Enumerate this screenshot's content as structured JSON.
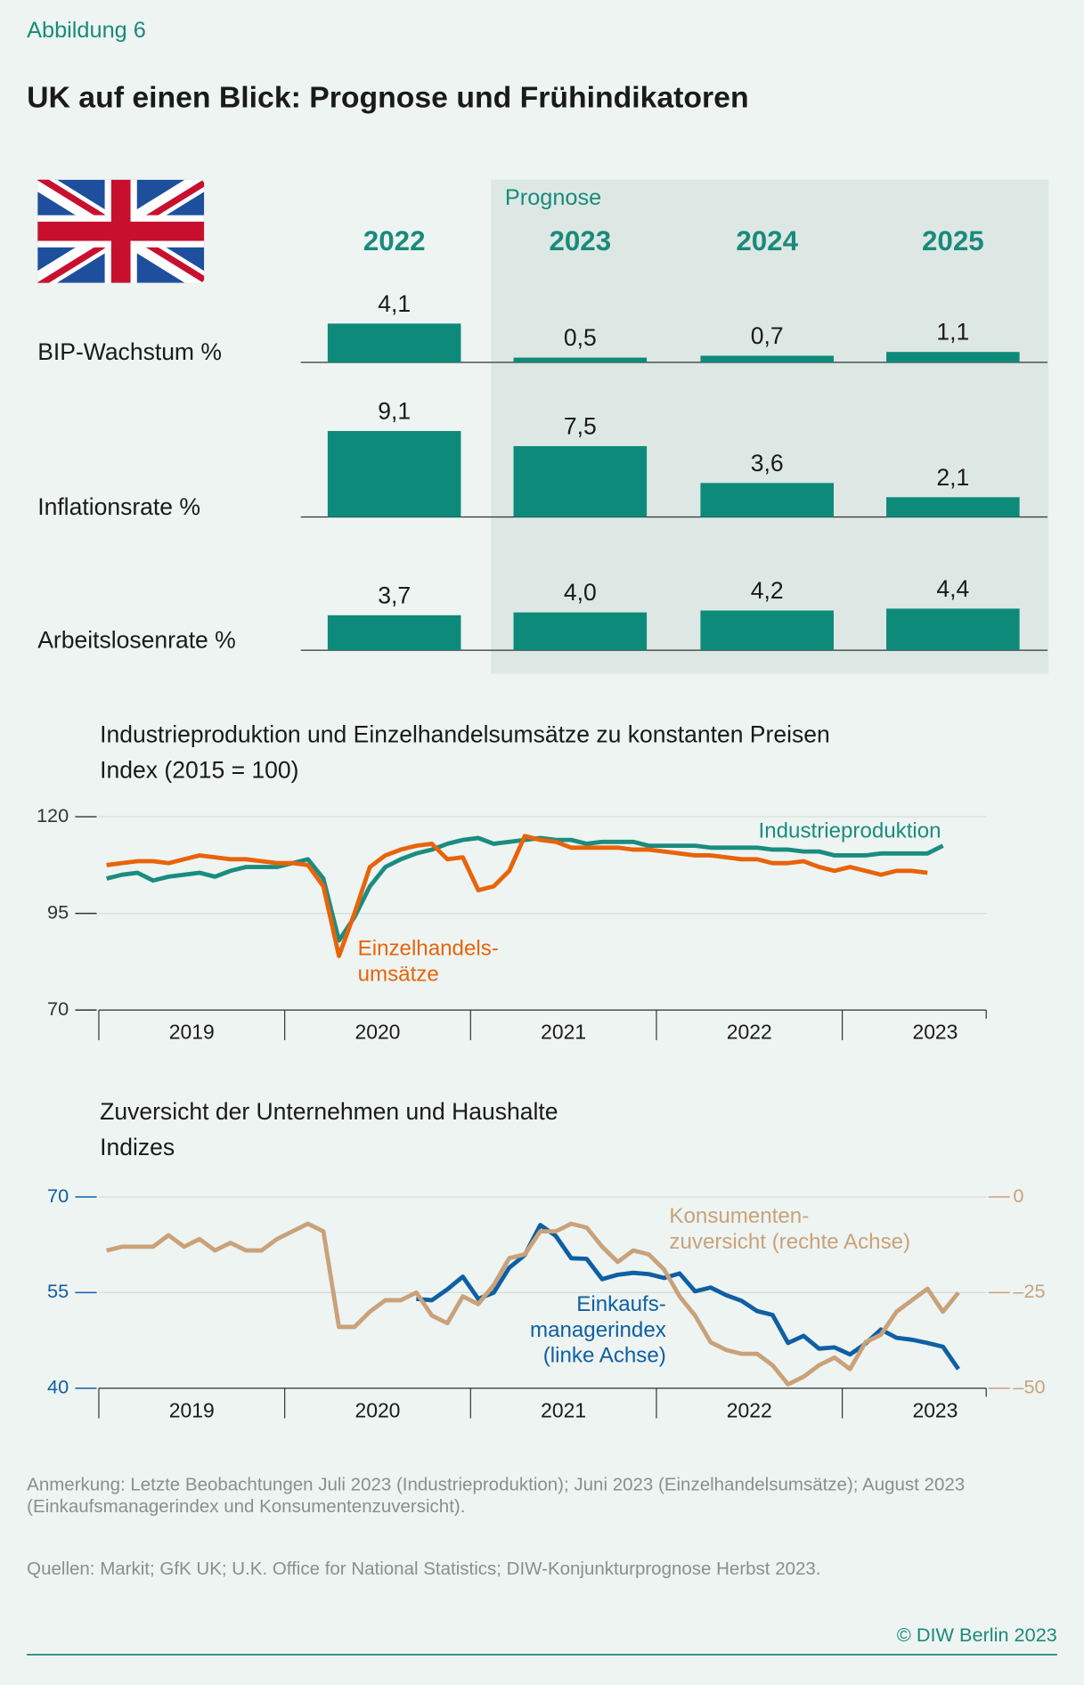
{
  "figure_label": "Abbildung 6",
  "title": "UK auf einen Blick: Prognose und Frühindikatoren",
  "note": "Anmerkung: Letzte Beobachtungen Juli 2023 (Industrieproduktion); Juni 2023 (Einzelhandelsumsätze); August 2023\n(Einkaufsmanagerindex und Konsumentenzuversicht).",
  "source": "Quellen: Markit; GfK UK; U.K. Office for National Statistics; DIW-Konjunkturprognose Herbst 2023.",
  "copyright": "© DIW Berlin 2023",
  "chart_data": [
    {
      "type": "bar",
      "forecast_label": "Prognose",
      "categories": [
        "2022",
        "2023",
        "2024",
        "2025"
      ],
      "color": "#0d8a7a",
      "series": [
        {
          "name": "BIP-Wachstum %",
          "values": [
            4.1,
            0.5,
            0.7,
            1.1
          ],
          "value_labels": [
            "4,1",
            "0,5",
            "0,7",
            "1,1"
          ]
        },
        {
          "name": "Inflationsrate %",
          "values": [
            9.1,
            7.5,
            3.6,
            2.1
          ],
          "value_labels": [
            "9,1",
            "7,5",
            "3,6",
            "2,1"
          ]
        },
        {
          "name": "Arbeitslosenrate %",
          "values": [
            3.7,
            4.0,
            4.2,
            4.4
          ],
          "value_labels": [
            "3,7",
            "4,0",
            "4,2",
            "4,4"
          ]
        }
      ]
    },
    {
      "type": "line",
      "title": "Industrieproduktion und Einzelhandelsumsätze zu konstanten Preisen",
      "subtitle": "Index (2015 = 100)",
      "xticklabels": [
        "2019",
        "2020",
        "2021",
        "2022",
        "2023"
      ],
      "ylim": [
        70,
        120
      ],
      "yticks": [
        70,
        95,
        120
      ],
      "grid": true,
      "series": [
        {
          "name": "Industrieproduktion",
          "color": "#1a8c80",
          "values": [
            104,
            105,
            105.5,
            103.5,
            104.5,
            105,
            105.5,
            104.5,
            106,
            107,
            107,
            107,
            108,
            109,
            104,
            88,
            94,
            102,
            107,
            109,
            110.5,
            111.5,
            113,
            114,
            114.5,
            113,
            113.5,
            114,
            114.5,
            114,
            114,
            113,
            113.5,
            113.5,
            113.5,
            112.5,
            112.5,
            112.5,
            112.5,
            112,
            112,
            112,
            112,
            111.5,
            111.5,
            111,
            111,
            110,
            110,
            110,
            110.5,
            110.5,
            110.5,
            110.5,
            112.5
          ]
        },
        {
          "name": "Einzelhandels-\numsätze",
          "color": "#e8630a",
          "values": [
            107.5,
            108,
            108.5,
            108.5,
            108,
            109,
            110,
            109.5,
            109,
            109,
            108.5,
            108,
            108,
            107.5,
            102,
            84,
            95,
            107,
            110,
            111.5,
            112.5,
            113,
            109,
            109.5,
            101,
            102,
            106,
            115,
            114,
            113.5,
            112,
            112,
            112,
            112,
            111.5,
            111.5,
            111,
            110.5,
            110,
            110,
            109.5,
            109,
            109,
            108,
            108,
            108.5,
            107,
            106,
            107,
            106,
            105,
            106,
            106,
            105.5
          ]
        }
      ]
    },
    {
      "type": "line",
      "title": "Zuversicht der Unternehmen und Haushalte",
      "subtitle": "Indizes",
      "xticklabels": [
        "2019",
        "2020",
        "2021",
        "2022",
        "2023"
      ],
      "ylim": [
        40,
        70
      ],
      "yticks": [
        40,
        55,
        70
      ],
      "y2lim": [
        -50,
        0
      ],
      "y2ticks": [
        {
          "value": -50,
          "label": "–50"
        },
        {
          "value": -25,
          "label": "–25"
        },
        0
      ],
      "grid": true,
      "series": [
        {
          "name": "Einkaufs-\nmanagerindex\n(linke Achse)",
          "color": "#0f5fa3",
          "values": [
            null,
            null,
            null,
            null,
            null,
            null,
            null,
            null,
            null,
            null,
            null,
            null,
            null,
            null,
            null,
            null,
            null,
            null,
            null,
            null,
            54,
            53.8,
            55.5,
            57.5,
            54,
            55,
            58.9,
            60.9,
            65.6,
            63.9,
            60.4,
            60.3,
            57.1,
            57.8,
            58.1,
            57.9,
            57.3,
            58,
            55.2,
            55.8,
            54.6,
            53.7,
            52.1,
            51.5,
            47.1,
            48.2,
            46.2,
            46.4,
            45.3,
            47,
            49.2,
            47.9,
            47.6,
            47.1,
            46.5,
            43
          ]
        },
        {
          "name": "Konsumenten-\nzuversicht (rechte Achse)",
          "color": "#c9a27a",
          "axis": "y2",
          "values": [
            -14,
            -13,
            -13,
            -13,
            -10,
            -13,
            -11,
            -14,
            -12,
            -14,
            -14,
            -11,
            -9,
            -7,
            -9,
            -34,
            -34,
            -30,
            -27,
            -27,
            -25,
            -31,
            -33,
            -26,
            -28,
            -23,
            -16,
            -15,
            -9,
            -9,
            -7,
            -8,
            -13,
            -17,
            -14,
            -15,
            -19,
            -26,
            -31,
            -38,
            -40,
            -41,
            -41,
            -44,
            -49,
            -47,
            -44,
            -42,
            -45,
            -38,
            -36,
            -30,
            -27,
            -24,
            -30,
            -25
          ]
        }
      ]
    }
  ]
}
